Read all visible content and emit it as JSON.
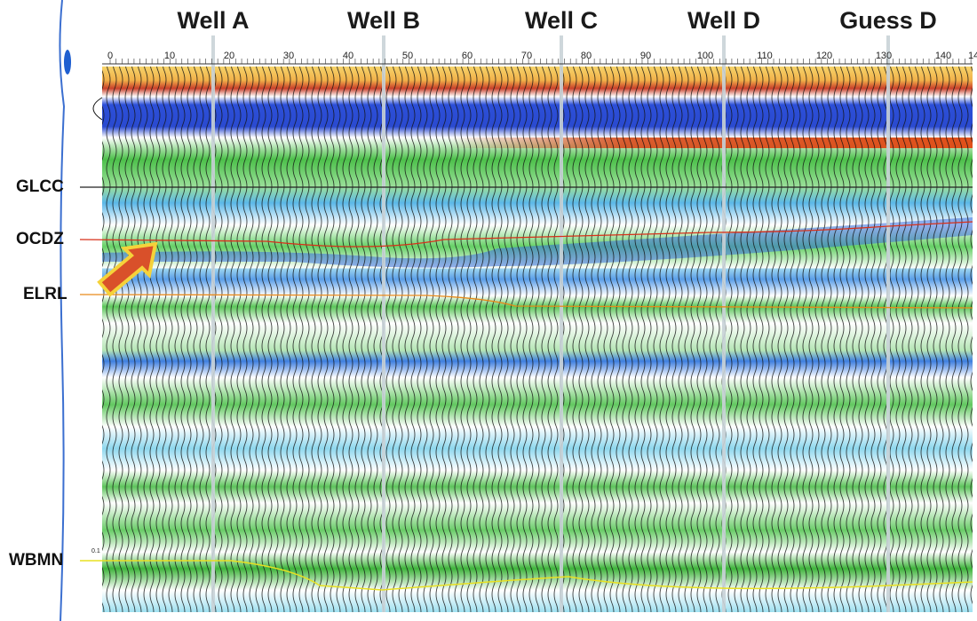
{
  "wells": [
    "Well A",
    "Well B",
    "Well C",
    "Well D",
    "Guess D"
  ],
  "horizons": [
    "GLCC",
    "OCDZ",
    "ELRL",
    "WBMN"
  ],
  "axis": {
    "ticks": [
      "0",
      "10",
      "20",
      "30",
      "40",
      "50",
      "60",
      "70",
      "80",
      "90",
      "100",
      "110",
      "120",
      "130",
      "140"
    ],
    "cut_label": "14",
    "time_label": "0.1"
  }
}
